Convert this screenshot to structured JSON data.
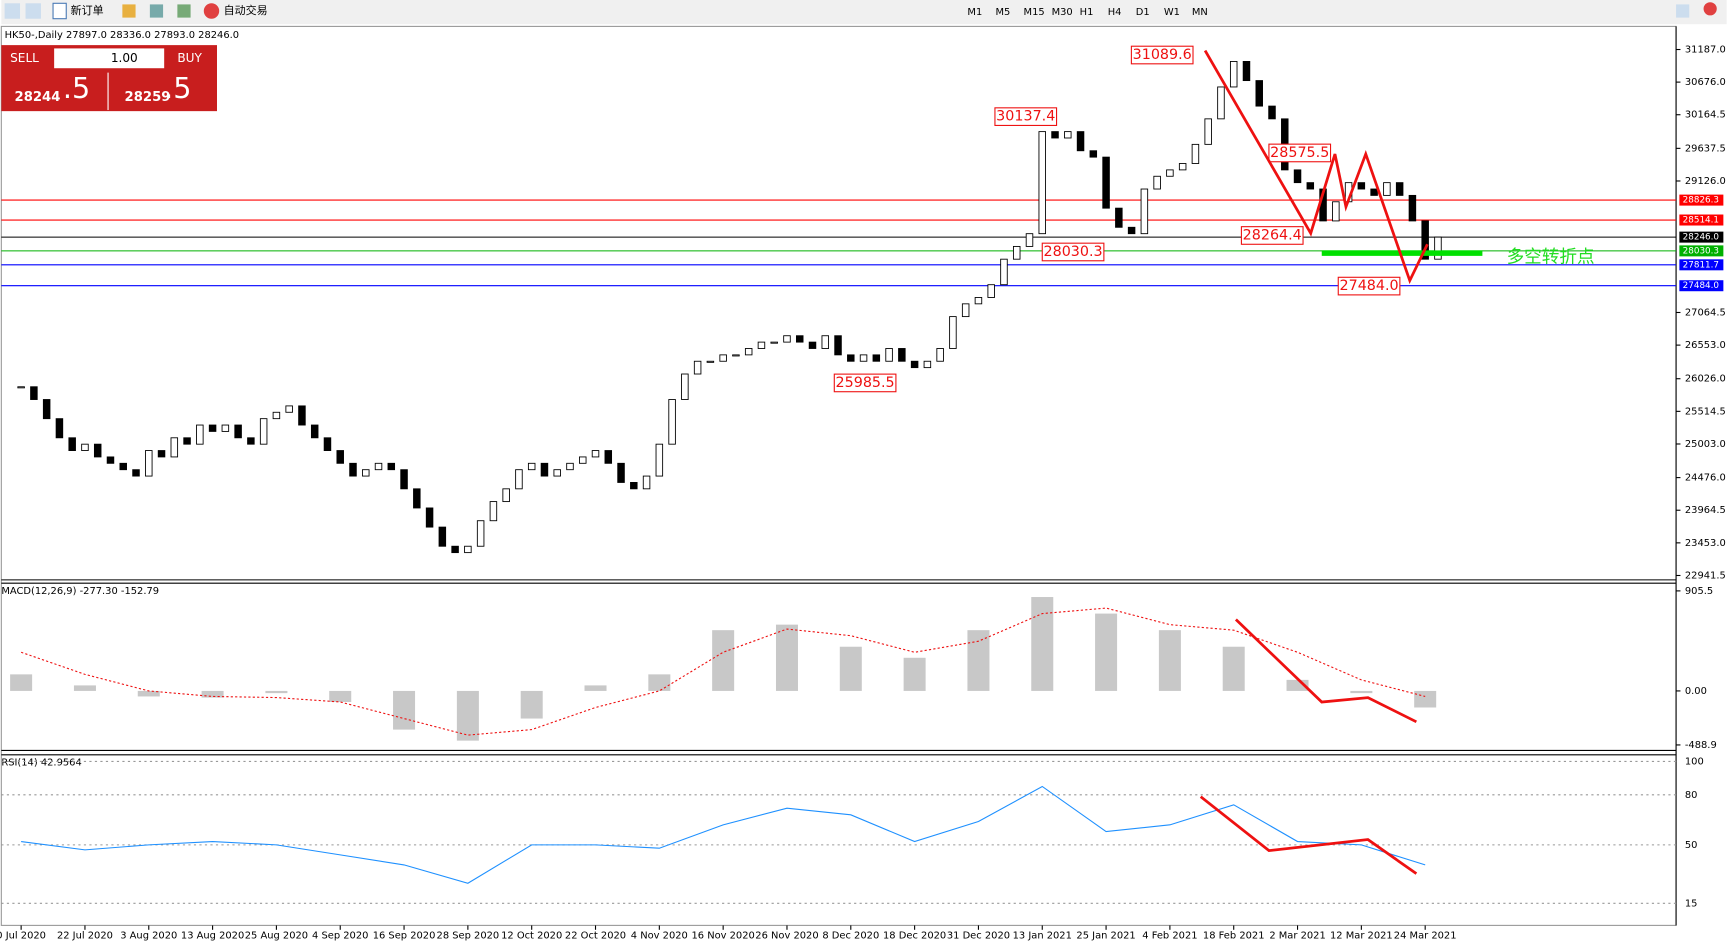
{
  "toolbar": {
    "new_order": "新订单",
    "auto_trading": "自动交易",
    "timeframes": [
      "M1",
      "M5",
      "M15",
      "M30",
      "H1",
      "H4",
      "D1",
      "W1",
      "MN"
    ]
  },
  "order_panel": {
    "sell": "SELL",
    "lots": "1.00",
    "buy": "BUY",
    "sell_price": "28244",
    "sell_pips": ".5",
    "buy_price": "28259",
    "buy_pips": ".5"
  },
  "chart_data": [
    {
      "type": "candlestick",
      "title": "HK50-,Daily 27897.0 28336.0 27893.0 28246.0",
      "categories": [
        "0 Jul 2020",
        null,
        null,
        null,
        null,
        "22 Jul 2020",
        null,
        null,
        null,
        null,
        "3 Aug 2020",
        null,
        null,
        null,
        null,
        "13 Aug 2020",
        null,
        null,
        null,
        null,
        "25 Aug 2020",
        null,
        null,
        null,
        null,
        "4 Sep 2020",
        null,
        null,
        null,
        null,
        "16 Sep 2020",
        null,
        null,
        null,
        null,
        "28 Sep 2020",
        null,
        null,
        null,
        null,
        "12 Oct 2020",
        null,
        null,
        null,
        null,
        "22 Oct 2020",
        null,
        null,
        null,
        null,
        "4 Nov 2020",
        null,
        null,
        null,
        null,
        "16 Nov 2020",
        null,
        null,
        null,
        null,
        "26 Nov 2020",
        null,
        null,
        null,
        null,
        "8 Dec 2020",
        null,
        null,
        null,
        null,
        "18 Dec 2020",
        null,
        null,
        null,
        null,
        "31 Dec 2020",
        null,
        null,
        null,
        null,
        "13 Jan 2021",
        null,
        null,
        null,
        null,
        "25 Jan 2021",
        null,
        null,
        null,
        null,
        "4 Feb 2021",
        null,
        null,
        null,
        null,
        "18 Feb 2021",
        null,
        null,
        null,
        null,
        "2 Mar 2021",
        null,
        null,
        null,
        null,
        "12 Mar 2021",
        null,
        null,
        null,
        null,
        "24 Mar 2021",
        null
      ],
      "values": [
        25900,
        25700,
        25400,
        25100,
        24900,
        25000,
        24800,
        24700,
        24600,
        24500,
        24900,
        24800,
        25100,
        25000,
        25300,
        25200,
        25300,
        25100,
        25000,
        25400,
        25500,
        25600,
        25300,
        25100,
        24900,
        24700,
        24500,
        24600,
        24700,
        24600,
        24300,
        24000,
        23700,
        23400,
        23300,
        23400,
        23800,
        24100,
        24300,
        24600,
        24700,
        24500,
        24600,
        24700,
        24800,
        24900,
        24700,
        24400,
        24300,
        24500,
        25000,
        25700,
        26100,
        26300,
        26300,
        26400,
        26400,
        26500,
        26600,
        26600,
        26700,
        26600,
        26500,
        26700,
        26400,
        26300,
        26400,
        26300,
        26500,
        26300,
        26200,
        26300,
        26500,
        27000,
        27200,
        27300,
        27500,
        27900,
        28100,
        28300,
        29900,
        29800,
        29900,
        29600,
        29500,
        28700,
        28400,
        28300,
        29000,
        29200,
        29300,
        29400,
        29700,
        30100,
        30600,
        31000,
        30700,
        30300,
        30100,
        29300,
        29100,
        29000,
        28500,
        28800,
        29100,
        29000,
        28900,
        29100,
        28900,
        28500,
        27900,
        28246
      ],
      "ylim": [
        22872.5,
        31532
      ],
      "yticks": [
        {
          "value": 31187,
          "label": "31187.0"
        },
        {
          "value": 30676,
          "label": "30676.0"
        },
        30164.5,
        29637.5,
        {
          "value": 29126,
          "label": "29126.0"
        },
        {
          "value": 27064.5,
          "label": "27064.5"
        },
        {
          "value": 26553,
          "label": "26553.0"
        },
        {
          "value": 26026,
          "label": "26026.0"
        },
        25514.5,
        {
          "value": 25003,
          "label": "25003.0"
        },
        {
          "value": 24476,
          "label": "24476.0"
        },
        23964.5,
        {
          "value": 23453,
          "label": "23453.0"
        },
        22941.5
      ],
      "levels": [
        {
          "value": 28826.3,
          "color": "#ff0000"
        },
        {
          "value": 28514.1,
          "color": "#ff0000"
        },
        {
          "value": 28246,
          "label": "28246.0",
          "color": "#000000"
        },
        {
          "value": 28030.3,
          "color": "#00b000"
        },
        {
          "value": 27811.7,
          "color": "#0000ff"
        },
        {
          "value": 27484,
          "label": "27484.0",
          "color": "#0000ff"
        }
      ],
      "annotations": [
        31089.6,
        30137.4,
        28575.5,
        28264.4,
        28030.3,
        25985.5,
        {
          "value": 27484,
          "label": "27484.0"
        }
      ],
      "note": "多空转折点"
    },
    {
      "type": "macd",
      "title": "MACD(12,26,9) -277.30 -152.79",
      "values": [
        150,
        50,
        -50,
        -60,
        -20,
        -100,
        -350,
        -450,
        -250,
        50,
        150,
        550,
        600,
        400,
        300,
        550,
        850,
        700,
        550,
        400,
        100,
        -20,
        -150
      ],
      "signal": [
        350,
        150,
        0,
        -50,
        -60,
        -100,
        -250,
        -400,
        -350,
        -150,
        0,
        350,
        560,
        500,
        350,
        450,
        700,
        750,
        600,
        550,
        350,
        100,
        -50
      ],
      "ylim": [
        -528.7,
        965.3
      ],
      "yticks": [
        905.5,
        {
          "value": 0,
          "label": "0.00"
        },
        -488.9
      ]
    },
    {
      "type": "rsi",
      "title": "RSI(14) 42.9564",
      "values": [
        52,
        47,
        50,
        52,
        50,
        44,
        38,
        27,
        50,
        50,
        48,
        62,
        72,
        68,
        52,
        64,
        85,
        58,
        62,
        74,
        52,
        50,
        38
      ],
      "ylim": [
        2.4,
        103.3
      ],
      "yticks": [
        100,
        80,
        50,
        15
      ]
    }
  ]
}
